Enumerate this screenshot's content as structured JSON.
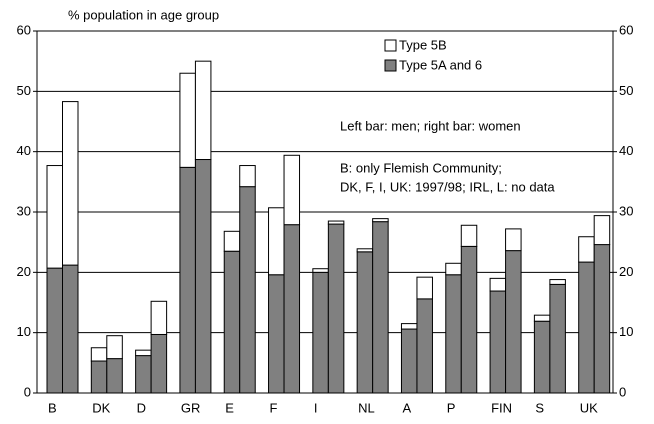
{
  "chart_data": {
    "type": "bar",
    "y_label": "% population in age group",
    "annotations": [
      "Left bar: men; right bar: women",
      "B: only Flemish Community;",
      "DK, F, I, UK: 1997/98; IRL, L: no data"
    ],
    "categories": [
      "B",
      "DK",
      "D",
      "GR",
      "E",
      "F",
      "I",
      "NL",
      "A",
      "P",
      "FIN",
      "S",
      "UK"
    ],
    "series": [
      {
        "name": "Type 5A and 6",
        "color": "#808080",
        "values": [
          [
            20.7,
            21.2
          ],
          [
            5.3,
            5.7
          ],
          [
            6.2,
            9.7
          ],
          [
            37.4,
            38.7
          ],
          [
            23.5,
            34.2
          ],
          [
            19.6,
            27.9
          ],
          [
            20.0,
            28.0
          ],
          [
            23.4,
            28.4
          ],
          [
            10.6,
            15.6
          ],
          [
            19.6,
            24.3
          ],
          [
            16.9,
            23.6
          ],
          [
            11.9,
            18.0
          ],
          [
            21.7,
            24.6
          ]
        ]
      },
      {
        "name": "Type 5B",
        "color": "#ffffff",
        "values": [
          [
            17.0,
            27.1
          ],
          [
            2.2,
            3.8
          ],
          [
            0.9,
            5.5
          ],
          [
            15.6,
            16.3
          ],
          [
            3.3,
            3.5
          ],
          [
            11.1,
            11.5
          ],
          [
            0.6,
            0.5
          ],
          [
            0.5,
            0.5
          ],
          [
            0.9,
            3.6
          ],
          [
            1.9,
            3.5
          ],
          [
            2.1,
            3.6
          ],
          [
            1.0,
            0.8
          ],
          [
            4.2,
            4.8
          ]
        ]
      }
    ],
    "stacked": true,
    "ylim": [
      0,
      60
    ],
    "yticks": [
      0,
      10,
      20,
      30,
      40,
      50,
      60
    ],
    "grid": true
  }
}
